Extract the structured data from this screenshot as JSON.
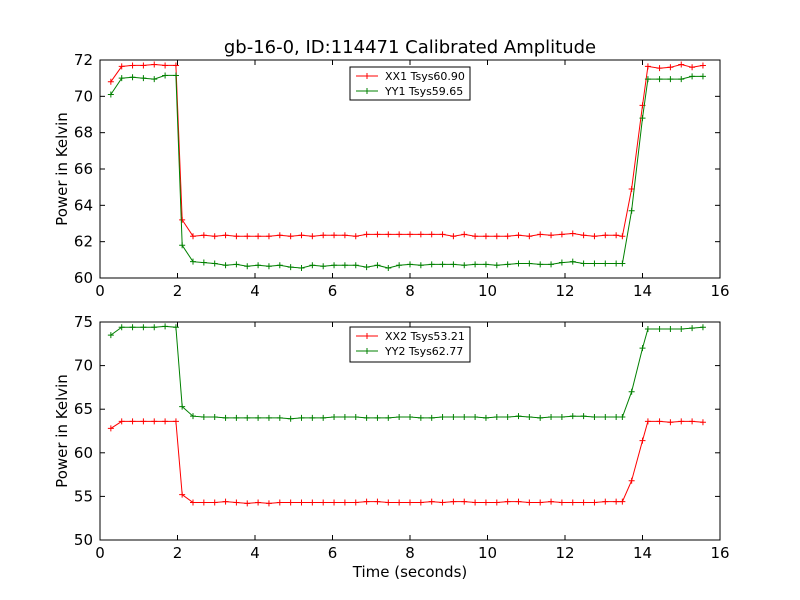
{
  "chart_data": {
    "title": "gb-16-0, ID:114471 Calibrated Amplitude",
    "xlabel": "Time (seconds)",
    "panels": [
      {
        "type": "line",
        "ylabel": "Power in Kelvin",
        "xlim": [
          0,
          16
        ],
        "ylim": [
          60,
          72
        ],
        "xticks": [
          0,
          2,
          4,
          6,
          8,
          10,
          12,
          14,
          16
        ],
        "yticks": [
          60,
          62,
          64,
          66,
          68,
          70,
          72
        ],
        "legend_position": "top-center",
        "series": [
          {
            "name": "XX1 Tsys60.90",
            "color": "#ff0000",
            "x": [
              0.28,
              0.56,
              0.84,
              1.12,
              1.4,
              1.68,
              1.96,
              2.12,
              2.4,
              2.68,
              2.96,
              3.24,
              3.52,
              3.8,
              4.08,
              4.36,
              4.64,
              4.92,
              5.2,
              5.48,
              5.76,
              6.04,
              6.32,
              6.6,
              6.88,
              7.16,
              7.44,
              7.72,
              8.0,
              8.28,
              8.56,
              8.84,
              9.12,
              9.4,
              9.68,
              9.96,
              10.24,
              10.52,
              10.8,
              11.08,
              11.36,
              11.64,
              11.92,
              12.2,
              12.48,
              12.76,
              13.04,
              13.32,
              13.48,
              13.72,
              14.0,
              14.14,
              14.44,
              14.72,
              15.0,
              15.28,
              15.56
            ],
            "y": [
              70.8,
              71.65,
              71.7,
              71.7,
              71.75,
              71.7,
              71.7,
              63.2,
              62.3,
              62.35,
              62.3,
              62.35,
              62.3,
              62.3,
              62.3,
              62.3,
              62.35,
              62.3,
              62.35,
              62.3,
              62.35,
              62.35,
              62.35,
              62.3,
              62.4,
              62.4,
              62.4,
              62.4,
              62.4,
              62.4,
              62.4,
              62.4,
              62.3,
              62.4,
              62.3,
              62.3,
              62.3,
              62.3,
              62.35,
              62.3,
              62.4,
              62.35,
              62.4,
              62.45,
              62.35,
              62.3,
              62.35,
              62.35,
              62.3,
              64.9,
              69.5,
              71.65,
              71.55,
              71.6,
              71.75,
              71.6,
              71.7
            ]
          },
          {
            "name": "YY1 Tsys59.65",
            "color": "#008000",
            "x": [
              0.28,
              0.56,
              0.84,
              1.12,
              1.4,
              1.68,
              1.96,
              2.12,
              2.4,
              2.68,
              2.96,
              3.24,
              3.52,
              3.8,
              4.08,
              4.36,
              4.64,
              4.92,
              5.2,
              5.48,
              5.76,
              6.04,
              6.32,
              6.6,
              6.88,
              7.16,
              7.44,
              7.72,
              8.0,
              8.28,
              8.56,
              8.84,
              9.12,
              9.4,
              9.68,
              9.96,
              10.24,
              10.52,
              10.8,
              11.08,
              11.36,
              11.64,
              11.92,
              12.2,
              12.48,
              12.76,
              13.04,
              13.32,
              13.48,
              13.72,
              14.0,
              14.14,
              14.44,
              14.72,
              15.0,
              15.28,
              15.56
            ],
            "y": [
              70.1,
              71.0,
              71.05,
              71.0,
              70.95,
              71.15,
              71.15,
              61.8,
              60.9,
              60.85,
              60.8,
              60.7,
              60.75,
              60.65,
              60.7,
              60.65,
              60.7,
              60.6,
              60.55,
              60.7,
              60.65,
              60.7,
              60.7,
              60.7,
              60.6,
              60.7,
              60.55,
              60.7,
              60.75,
              60.7,
              60.75,
              60.75,
              60.75,
              60.7,
              60.75,
              60.75,
              60.7,
              60.75,
              60.8,
              60.8,
              60.75,
              60.75,
              60.85,
              60.9,
              60.8,
              60.8,
              60.8,
              60.8,
              60.8,
              63.7,
              68.8,
              70.95,
              70.95,
              70.95,
              70.95,
              71.1,
              71.1
            ]
          }
        ]
      },
      {
        "type": "line",
        "ylabel": "Power in Kelvin",
        "xlim": [
          0,
          16
        ],
        "ylim": [
          50,
          75
        ],
        "xticks": [
          0,
          2,
          4,
          6,
          8,
          10,
          12,
          14,
          16
        ],
        "yticks": [
          50,
          55,
          60,
          65,
          70,
          75
        ],
        "legend_position": "top-center",
        "series": [
          {
            "name": "XX2 Tsys53.21",
            "color": "#ff0000",
            "x": [
              0.28,
              0.56,
              0.84,
              1.12,
              1.4,
              1.68,
              1.96,
              2.12,
              2.4,
              2.68,
              2.96,
              3.24,
              3.52,
              3.8,
              4.08,
              4.36,
              4.64,
              4.92,
              5.2,
              5.48,
              5.76,
              6.04,
              6.32,
              6.6,
              6.88,
              7.16,
              7.44,
              7.72,
              8.0,
              8.28,
              8.56,
              8.84,
              9.12,
              9.4,
              9.68,
              9.96,
              10.24,
              10.52,
              10.8,
              11.08,
              11.36,
              11.64,
              11.92,
              12.2,
              12.48,
              12.76,
              13.04,
              13.32,
              13.48,
              13.72,
              14.0,
              14.14,
              14.44,
              14.72,
              15.0,
              15.28,
              15.56
            ],
            "y": [
              62.8,
              63.6,
              63.6,
              63.6,
              63.6,
              63.6,
              63.6,
              55.2,
              54.3,
              54.3,
              54.3,
              54.4,
              54.3,
              54.2,
              54.3,
              54.2,
              54.3,
              54.3,
              54.3,
              54.3,
              54.3,
              54.3,
              54.3,
              54.3,
              54.4,
              54.4,
              54.3,
              54.3,
              54.3,
              54.3,
              54.4,
              54.3,
              54.4,
              54.4,
              54.3,
              54.3,
              54.3,
              54.4,
              54.4,
              54.3,
              54.3,
              54.4,
              54.3,
              54.3,
              54.3,
              54.3,
              54.4,
              54.4,
              54.4,
              56.8,
              61.4,
              63.6,
              63.6,
              63.5,
              63.6,
              63.6,
              63.5
            ]
          },
          {
            "name": "YY2 Tsys62.77",
            "color": "#008000",
            "x": [
              0.28,
              0.56,
              0.84,
              1.12,
              1.4,
              1.68,
              1.96,
              2.12,
              2.4,
              2.68,
              2.96,
              3.24,
              3.52,
              3.8,
              4.08,
              4.36,
              4.64,
              4.92,
              5.2,
              5.48,
              5.76,
              6.04,
              6.32,
              6.6,
              6.88,
              7.16,
              7.44,
              7.72,
              8.0,
              8.28,
              8.56,
              8.84,
              9.12,
              9.4,
              9.68,
              9.96,
              10.24,
              10.52,
              10.8,
              11.08,
              11.36,
              11.64,
              11.92,
              12.2,
              12.48,
              12.76,
              13.04,
              13.32,
              13.48,
              13.72,
              14.0,
              14.14,
              14.44,
              14.72,
              15.0,
              15.28,
              15.56
            ],
            "y": [
              73.5,
              74.4,
              74.4,
              74.4,
              74.4,
              74.5,
              74.4,
              65.3,
              64.2,
              64.1,
              64.1,
              64.0,
              64.0,
              64.0,
              64.0,
              64.0,
              64.0,
              63.9,
              64.0,
              64.0,
              64.0,
              64.1,
              64.1,
              64.1,
              64.0,
              64.0,
              64.0,
              64.1,
              64.1,
              64.0,
              64.0,
              64.1,
              64.1,
              64.1,
              64.1,
              64.0,
              64.1,
              64.1,
              64.2,
              64.1,
              64.0,
              64.1,
              64.1,
              64.2,
              64.2,
              64.1,
              64.1,
              64.1,
              64.1,
              67.0,
              72.0,
              74.2,
              74.2,
              74.2,
              74.2,
              74.3,
              74.4
            ]
          }
        ]
      }
    ]
  }
}
